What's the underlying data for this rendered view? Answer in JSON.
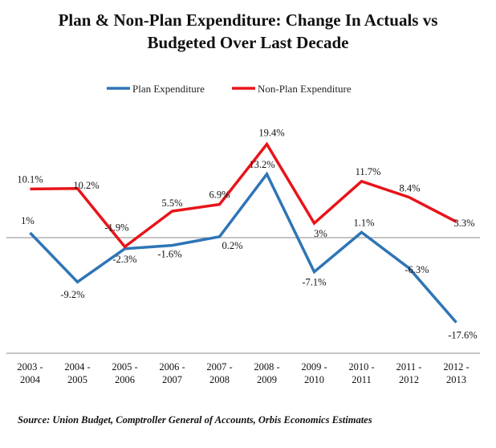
{
  "chart_data": {
    "type": "line",
    "title_lines": [
      "Plan & Non-Plan Expenditure: Change In Actuals vs",
      "Budgeted Over Last Decade"
    ],
    "categories": [
      [
        "2003 -",
        "2004"
      ],
      [
        "2004 -",
        "2005"
      ],
      [
        "2005 -",
        "2006"
      ],
      [
        "2006 -",
        "2007"
      ],
      [
        "2007 -",
        "2008"
      ],
      [
        "2008 -",
        "2009"
      ],
      [
        "2009 -",
        "2010"
      ],
      [
        "2010 -",
        "2011"
      ],
      [
        "2011 -",
        "2012"
      ],
      [
        "2012 -",
        "2013"
      ]
    ],
    "series": [
      {
        "name": "Plan Expenditure",
        "color": "#2E75B6",
        "values": [
          1.0,
          -9.2,
          -2.3,
          -1.6,
          0.2,
          13.2,
          -7.1,
          1.1,
          -6.3,
          -17.6
        ],
        "labels": [
          "1%",
          "-9.2%",
          "-2.3%",
          "-1.6%",
          "0.2%",
          "13.2%",
          "-7.1%",
          "1.1%",
          "-6.3%",
          "-17.6%"
        ]
      },
      {
        "name": "Non-Plan Expenditure",
        "color": "#E8141A",
        "values": [
          10.1,
          10.2,
          -1.9,
          5.5,
          6.9,
          19.4,
          3.0,
          11.7,
          8.4,
          3.3
        ],
        "labels": [
          "10.1%",
          "10.2%",
          "-1.9%",
          "5.5%",
          "6.9%",
          "19.4%",
          "3%",
          "11.7%",
          "8.4%",
          "3.3%"
        ]
      }
    ],
    "ylim": [
      -24,
      24
    ],
    "grid": false,
    "zero_line": true,
    "legend_position": "top-center",
    "source": "Source: Union Budget, Comptroller General of Accounts, Orbis Economics Estimates"
  }
}
